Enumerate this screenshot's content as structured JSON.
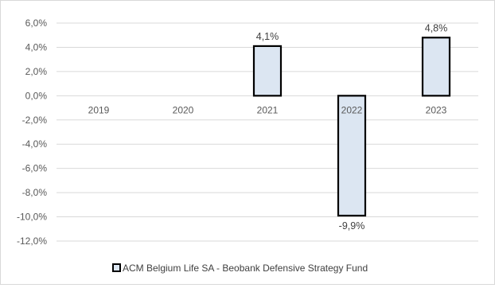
{
  "colors": {
    "bar_fill": "#dce6f2",
    "bar_stroke": "#000000",
    "grid": "#d9d9d9",
    "text": "#595959"
  },
  "chart_data": {
    "type": "bar",
    "categories": [
      "2019",
      "2020",
      "2021",
      "2022",
      "2023"
    ],
    "series": [
      {
        "name": "ACM Belgium Life SA - Beobank Defensive Strategy Fund",
        "values": [
          null,
          null,
          4.1,
          -9.9,
          4.8
        ],
        "labels": [
          "",
          "",
          "4,1%",
          "-9,9%",
          "4,8%"
        ]
      }
    ],
    "y_ticks": [
      "6,0%",
      "4,0%",
      "2,0%",
      "0,0%",
      "-2,0%",
      "-4,0%",
      "-6,0%",
      "-8,0%",
      "-10,0%",
      "-12,0%"
    ],
    "y_tick_values": [
      6,
      4,
      2,
      0,
      -2,
      -4,
      -6,
      -8,
      -10,
      -12
    ],
    "ylim": [
      -12,
      6
    ],
    "grid": true,
    "legend": "bottom",
    "title": "",
    "xlabel": "",
    "ylabel": ""
  }
}
